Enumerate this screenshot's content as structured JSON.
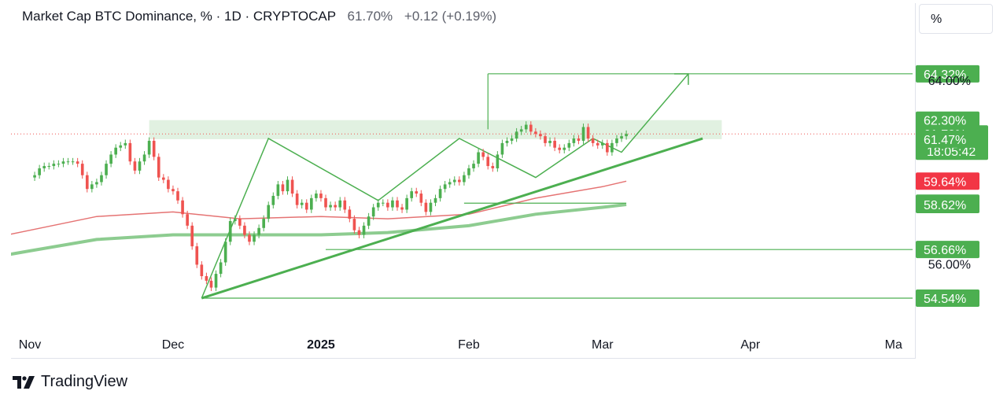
{
  "header": {
    "title": "Market Cap BTC Dominance, %",
    "interval": "1D",
    "exchange": "CRYPTOCAP",
    "separator": "·",
    "price": "61.70%",
    "change": "+0.12 (+0.19%)"
  },
  "scale_button": {
    "label": "%"
  },
  "footer": {
    "brand": "TradingView",
    "logo_icon": "tradingview-logo-icon"
  },
  "colors": {
    "up": "#4caf50",
    "down": "#ef5350",
    "drawing": "#4caf50",
    "ma_fast": "#e57373",
    "ma_slow": "#81c784",
    "zone": "#c8e6c9",
    "label_green": "#4caf50",
    "label_red": "#f23645"
  },
  "chart_data": {
    "type": "candlestick",
    "symbol": "BTC.D",
    "ylim": [
      53.1,
      67.4
    ],
    "x_ticks": [
      {
        "label": "Nov",
        "date": "2024-11-01",
        "bold": false
      },
      {
        "label": "Dec",
        "date": "2024-12-01",
        "bold": false
      },
      {
        "label": "2025",
        "date": "2025-01-01",
        "bold": true
      },
      {
        "label": "Feb",
        "date": "2025-02-01",
        "bold": false
      },
      {
        "label": "Mar",
        "date": "2025-03-01",
        "bold": false
      },
      {
        "label": "Apr",
        "date": "2025-04-01",
        "bold": false
      },
      {
        "label": "Ma",
        "date": "2025-05-01",
        "bold": false
      }
    ],
    "close_series": [
      [
        "2024-11-01",
        59.8
      ],
      [
        "2024-11-02",
        59.9
      ],
      [
        "2024-11-03",
        60.2
      ],
      [
        "2024-11-04",
        60.3
      ],
      [
        "2024-11-05",
        60.3
      ],
      [
        "2024-11-06",
        60.4
      ],
      [
        "2024-11-07",
        60.4
      ],
      [
        "2024-11-08",
        60.5
      ],
      [
        "2024-11-09",
        60.5
      ],
      [
        "2024-11-10",
        60.5
      ],
      [
        "2024-11-11",
        60.4
      ],
      [
        "2024-11-12",
        59.9
      ],
      [
        "2024-11-13",
        59.3
      ],
      [
        "2024-11-14",
        59.5
      ],
      [
        "2024-11-15",
        59.6
      ],
      [
        "2024-11-16",
        59.9
      ],
      [
        "2024-11-17",
        60.4
      ],
      [
        "2024-11-18",
        60.8
      ],
      [
        "2024-11-19",
        61.1
      ],
      [
        "2024-11-20",
        61.2
      ],
      [
        "2024-11-21",
        61.3
      ],
      [
        "2024-11-22",
        60.5
      ],
      [
        "2024-11-23",
        60.1
      ],
      [
        "2024-11-24",
        60.5
      ],
      [
        "2024-11-25",
        60.8
      ],
      [
        "2024-11-26",
        61.4
      ],
      [
        "2024-11-27",
        60.7
      ],
      [
        "2024-11-28",
        59.8
      ],
      [
        "2024-11-29",
        59.7
      ],
      [
        "2024-11-30",
        59.3
      ],
      [
        "2024-12-01",
        59.2
      ],
      [
        "2024-12-02",
        58.8
      ],
      [
        "2024-12-03",
        58.2
      ],
      [
        "2024-12-04",
        57.7
      ],
      [
        "2024-12-05",
        56.8
      ],
      [
        "2024-12-06",
        56.0
      ],
      [
        "2024-12-07",
        55.5
      ],
      [
        "2024-12-08",
        55.3
      ],
      [
        "2024-12-09",
        55.0
      ],
      [
        "2024-12-10",
        55.6
      ],
      [
        "2024-12-11",
        56.1
      ],
      [
        "2024-12-12",
        57.0
      ],
      [
        "2024-12-13",
        57.9
      ],
      [
        "2024-12-14",
        58.0
      ],
      [
        "2024-12-15",
        57.7
      ],
      [
        "2024-12-16",
        57.3
      ],
      [
        "2024-12-17",
        57.0
      ],
      [
        "2024-12-18",
        57.3
      ],
      [
        "2024-12-19",
        57.6
      ],
      [
        "2024-12-20",
        58.0
      ],
      [
        "2024-12-21",
        58.6
      ],
      [
        "2024-12-22",
        59.0
      ],
      [
        "2024-12-23",
        59.5
      ],
      [
        "2024-12-24",
        59.2
      ],
      [
        "2024-12-25",
        59.7
      ],
      [
        "2024-12-26",
        59.1
      ],
      [
        "2024-12-27",
        58.6
      ],
      [
        "2024-12-28",
        58.7
      ],
      [
        "2024-12-29",
        58.4
      ],
      [
        "2024-12-30",
        58.9
      ],
      [
        "2024-12-31",
        59.1
      ],
      [
        "2025-01-01",
        58.9
      ],
      [
        "2025-01-02",
        58.5
      ],
      [
        "2025-01-03",
        58.6
      ],
      [
        "2025-01-04",
        58.5
      ],
      [
        "2025-01-05",
        58.8
      ],
      [
        "2025-01-06",
        58.4
      ],
      [
        "2025-01-07",
        58.0
      ],
      [
        "2025-01-08",
        57.5
      ],
      [
        "2025-01-09",
        57.3
      ],
      [
        "2025-01-10",
        57.7
      ],
      [
        "2025-01-11",
        58.1
      ],
      [
        "2025-01-12",
        58.5
      ],
      [
        "2025-01-13",
        58.7
      ],
      [
        "2025-01-14",
        58.7
      ],
      [
        "2025-01-15",
        58.5
      ],
      [
        "2025-01-16",
        58.8
      ],
      [
        "2025-01-17",
        58.5
      ],
      [
        "2025-01-18",
        58.4
      ],
      [
        "2025-01-19",
        58.9
      ],
      [
        "2025-01-20",
        59.2
      ],
      [
        "2025-01-21",
        59.1
      ],
      [
        "2025-01-22",
        58.7
      ],
      [
        "2025-01-23",
        58.3
      ],
      [
        "2025-01-24",
        58.7
      ],
      [
        "2025-01-25",
        58.9
      ],
      [
        "2025-01-26",
        59.3
      ],
      [
        "2025-01-27",
        59.5
      ],
      [
        "2025-01-28",
        59.6
      ],
      [
        "2025-01-29",
        59.7
      ],
      [
        "2025-01-30",
        59.6
      ],
      [
        "2025-01-31",
        59.9
      ],
      [
        "2025-02-01",
        60.2
      ],
      [
        "2025-02-02",
        60.4
      ],
      [
        "2025-02-03",
        60.9
      ],
      [
        "2025-02-04",
        60.7
      ],
      [
        "2025-02-05",
        60.3
      ],
      [
        "2025-02-06",
        60.2
      ],
      [
        "2025-02-07",
        60.8
      ],
      [
        "2025-02-08",
        61.3
      ],
      [
        "2025-02-09",
        61.4
      ],
      [
        "2025-02-10",
        61.5
      ],
      [
        "2025-02-11",
        61.8
      ],
      [
        "2025-02-12",
        61.9
      ],
      [
        "2025-02-13",
        62.1
      ],
      [
        "2025-02-14",
        61.8
      ],
      [
        "2025-02-15",
        61.7
      ],
      [
        "2025-02-16",
        61.6
      ],
      [
        "2025-02-17",
        61.3
      ],
      [
        "2025-02-18",
        61.4
      ],
      [
        "2025-02-19",
        61.1
      ],
      [
        "2025-02-20",
        61.0
      ],
      [
        "2025-02-21",
        61.1
      ],
      [
        "2025-02-22",
        61.3
      ],
      [
        "2025-02-23",
        61.5
      ],
      [
        "2025-02-24",
        61.4
      ],
      [
        "2025-02-25",
        62.0
      ],
      [
        "2025-02-26",
        61.5
      ],
      [
        "2025-02-27",
        61.3
      ],
      [
        "2025-02-28",
        61.2
      ],
      [
        "2025-03-01",
        61.3
      ],
      [
        "2025-03-02",
        60.9
      ],
      [
        "2025-03-03",
        61.3
      ],
      [
        "2025-03-04",
        61.5
      ],
      [
        "2025-03-05",
        61.6
      ],
      [
        "2025-03-06",
        61.7
      ]
    ],
    "ma_fast": [
      [
        "2024-11-01",
        57.5
      ],
      [
        "2024-11-15",
        58.1
      ],
      [
        "2024-12-01",
        58.3
      ],
      [
        "2024-12-15",
        58.0
      ],
      [
        "2025-01-01",
        58.1
      ],
      [
        "2025-01-15",
        58.0
      ],
      [
        "2025-02-01",
        58.2
      ],
      [
        "2025-02-15",
        58.9
      ],
      [
        "2025-03-01",
        59.4
      ],
      [
        "2025-03-06",
        59.64
      ]
    ],
    "ma_slow": [
      [
        "2024-11-01",
        56.6
      ],
      [
        "2024-11-15",
        57.1
      ],
      [
        "2024-12-01",
        57.3
      ],
      [
        "2024-12-15",
        57.3
      ],
      [
        "2025-01-01",
        57.3
      ],
      [
        "2025-01-15",
        57.4
      ],
      [
        "2025-02-01",
        57.7
      ],
      [
        "2025-02-15",
        58.2
      ],
      [
        "2025-03-01",
        58.5
      ],
      [
        "2025-03-06",
        58.62
      ]
    ],
    "zone": {
      "from": "2024-11-26",
      "to": "2025-03-26",
      "low": 61.47,
      "high": 62.3
    },
    "horizontal_lines": [
      {
        "from": "2025-02-05",
        "to": "2025-05-05",
        "y": 64.32
      },
      {
        "from": "2025-01-31",
        "to": "2025-03-06",
        "y": 58.68
      },
      {
        "from": "2025-01-02",
        "to": "2025-05-05",
        "y": 56.66
      },
      {
        "from": "2024-12-07",
        "to": "2025-05-05",
        "y": 54.54
      }
    ],
    "vertical_lines": [
      {
        "x": "2025-02-05",
        "from": 61.9,
        "to": 64.32
      }
    ],
    "trendlines": [
      {
        "from": [
          "2024-12-07",
          54.54
        ],
        "to": [
          "2025-03-22",
          61.5
        ],
        "width": 3
      }
    ],
    "pattern_path": [
      [
        "2024-12-07",
        54.54
      ],
      [
        "2024-12-21",
        61.5
      ],
      [
        "2025-01-13",
        58.8
      ],
      [
        "2025-01-30",
        61.5
      ],
      [
        "2025-02-15",
        59.8
      ],
      [
        "2025-02-27",
        61.5
      ],
      [
        "2025-03-05",
        60.9
      ],
      [
        "2025-03-19",
        64.32
      ]
    ],
    "small_pattern": [
      [
        "2024-12-07",
        54.5
      ],
      [
        "2024-12-21",
        61.5
      ]
    ],
    "price_labels": [
      {
        "text": "64.32%",
        "value": 64.32,
        "kind": "green"
      },
      {
        "text": "64.00%",
        "value": 64.0,
        "kind": "plain"
      },
      {
        "text": "62.30%",
        "value": 62.3,
        "kind": "green"
      },
      {
        "text": "61.70%",
        "value": 61.7,
        "kind": "green",
        "sub": "18:05:42"
      },
      {
        "text": "61.47%",
        "value": 61.47,
        "kind": "green"
      },
      {
        "text": "59.64%",
        "value": 59.64,
        "kind": "red"
      },
      {
        "text": "58.68%",
        "value": 58.68,
        "kind": "green"
      },
      {
        "text": "58.62%",
        "value": 58.62,
        "kind": "green"
      },
      {
        "text": "56.66%",
        "value": 56.66,
        "kind": "green"
      },
      {
        "text": "56.00%",
        "value": 56.0,
        "kind": "plain"
      },
      {
        "text": "54.54%",
        "value": 54.54,
        "kind": "green"
      }
    ],
    "current_price_line": 61.7,
    "grid": false
  }
}
